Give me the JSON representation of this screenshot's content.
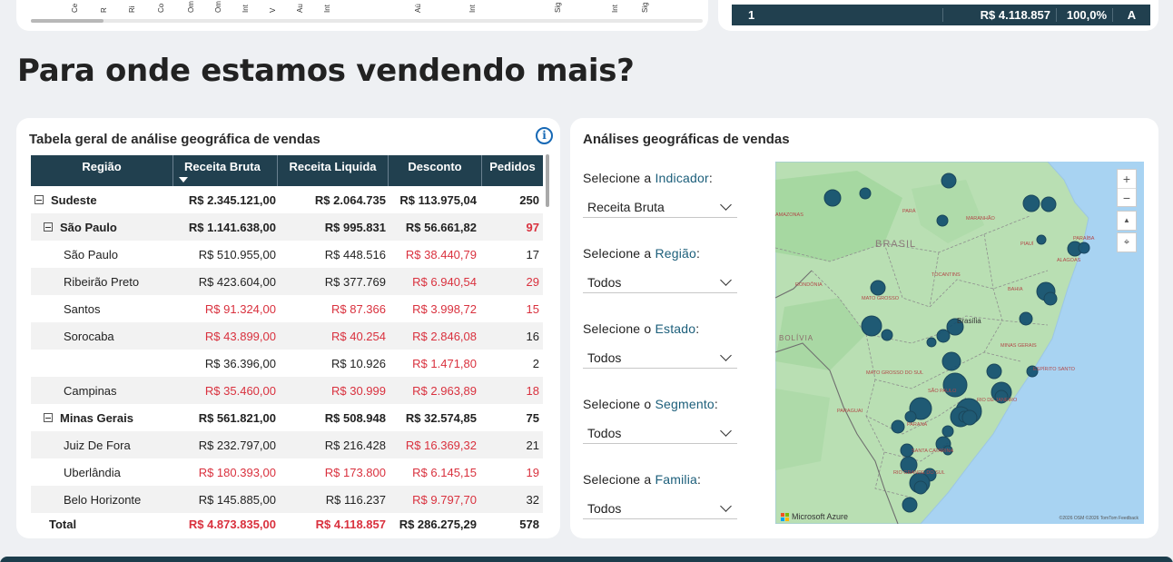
{
  "top_strip": {
    "rotated_labels": [
      "Ce",
      "R",
      "Ri",
      "Co",
      "Om",
      "Om",
      "Int",
      "V",
      "Au",
      "Int",
      "Aú",
      "Int",
      "Sig",
      "Int",
      "Sig"
    ],
    "totals_row": {
      "rank": "1",
      "value": "R$ 4.118.857",
      "percent": "100,0%",
      "class": "A"
    }
  },
  "page_title": "Para onde estamos vendendo mais?",
  "table_card": {
    "title": "Tabela geral de análise geográfica de vendas",
    "info_icon": "i",
    "columns": [
      "Região",
      "Receita Bruta",
      "Receita Liquida",
      "Desconto",
      "Pedidos"
    ],
    "rows": [
      {
        "level": 0,
        "bold": true,
        "expander": true,
        "name": "Sudeste",
        "bruta": "R$ 2.345.121,00",
        "liquida": "R$ 2.064.735",
        "desconto": "R$ 113.975,04",
        "pedidos": "250",
        "red": []
      },
      {
        "level": 1,
        "bold": true,
        "expander": true,
        "name": "São Paulo",
        "bruta": "R$ 1.141.638,00",
        "liquida": "R$ 995.831",
        "desconto": "R$ 56.661,82",
        "pedidos": "97",
        "red": [
          "pedidos"
        ]
      },
      {
        "level": 2,
        "bold": false,
        "expander": false,
        "name": "São Paulo",
        "bruta": "R$ 510.955,00",
        "liquida": "R$ 448.516",
        "desconto": "R$ 38.440,79",
        "pedidos": "17",
        "red": [
          "desconto"
        ]
      },
      {
        "level": 2,
        "bold": false,
        "expander": false,
        "name": "Ribeirão Preto",
        "bruta": "R$ 423.604,00",
        "liquida": "R$ 377.769",
        "desconto": "R$ 6.940,54",
        "pedidos": "29",
        "red": [
          "desconto",
          "pedidos"
        ]
      },
      {
        "level": 2,
        "bold": false,
        "expander": false,
        "name": "Santos",
        "bruta": "R$ 91.324,00",
        "liquida": "R$ 87.366",
        "desconto": "R$ 3.998,72",
        "pedidos": "15",
        "red": [
          "bruta",
          "liquida",
          "desconto",
          "pedidos"
        ]
      },
      {
        "level": 2,
        "bold": false,
        "expander": false,
        "name": "Sorocaba",
        "bruta": "R$ 43.899,00",
        "liquida": "R$ 40.254",
        "desconto": "R$ 2.846,08",
        "pedidos": "16",
        "red": [
          "bruta",
          "liquida",
          "desconto"
        ]
      },
      {
        "level": 2,
        "bold": false,
        "expander": false,
        "name": "",
        "bruta": "R$ 36.396,00",
        "liquida": "R$ 10.926",
        "desconto": "R$ 1.471,80",
        "pedidos": "2",
        "red": [
          "desconto"
        ]
      },
      {
        "level": 2,
        "bold": false,
        "expander": false,
        "name": "Campinas",
        "bruta": "R$ 35.460,00",
        "liquida": "R$ 30.999",
        "desconto": "R$ 2.963,89",
        "pedidos": "18",
        "red": [
          "bruta",
          "liquida",
          "desconto",
          "pedidos"
        ]
      },
      {
        "level": 1,
        "bold": true,
        "expander": true,
        "name": "Minas Gerais",
        "bruta": "R$ 561.821,00",
        "liquida": "R$ 508.948",
        "desconto": "R$ 32.574,85",
        "pedidos": "75",
        "red": []
      },
      {
        "level": 2,
        "bold": false,
        "expander": false,
        "name": "Juiz De Fora",
        "bruta": "R$ 232.797,00",
        "liquida": "R$ 216.428",
        "desconto": "R$ 16.369,32",
        "pedidos": "21",
        "red": [
          "desconto"
        ]
      },
      {
        "level": 2,
        "bold": false,
        "expander": false,
        "name": "Uberlândia",
        "bruta": "R$ 180.393,00",
        "liquida": "R$ 173.800",
        "desconto": "R$ 6.145,15",
        "pedidos": "19",
        "red": [
          "bruta",
          "liquida",
          "desconto",
          "pedidos"
        ]
      },
      {
        "level": 2,
        "bold": false,
        "expander": false,
        "name": "Belo Horizonte",
        "bruta": "R$ 145.885,00",
        "liquida": "R$ 116.237",
        "desconto": "R$ 9.797,70",
        "pedidos": "32",
        "red": [
          "desconto"
        ]
      }
    ],
    "total": {
      "name": "Total",
      "bruta": "R$ 4.873.835,00",
      "liquida": "R$ 4.118.857",
      "desconto": "R$ 286.275,29",
      "pedidos": "578"
    }
  },
  "map_card": {
    "title": "Análises geográficas de vendas",
    "filters": [
      {
        "prefix": "Selecione a ",
        "highlight": "Indicador",
        "suffix": ":",
        "value": "Receita Bruta"
      },
      {
        "prefix": "Selecione a ",
        "highlight": "Região",
        "suffix": ":",
        "value": "Todos"
      },
      {
        "prefix": "Selecione o ",
        "highlight": "Estado",
        "suffix": ":",
        "value": "Todos"
      },
      {
        "prefix": "Selecione o ",
        "highlight": "Segmento",
        "suffix": ":",
        "value": "Todos"
      },
      {
        "prefix": "Selecione a ",
        "highlight": "Familia",
        "suffix": ":",
        "value": "Todos"
      }
    ],
    "map": {
      "controls": [
        "+",
        "−",
        "▲",
        "⌖"
      ],
      "logo_text": "Microsoft Azure",
      "credit_text": "©2026 OSM ©2026 TomTom Feedback",
      "country_label": "BRASIL",
      "country_label_2": "BOLÍVIA",
      "capital_label": "Brasília",
      "state_labels": [
        "AMAZONAS",
        "PARÁ",
        "MARANHÃO",
        "PIAUÍ",
        "PARAÍBA",
        "ALAGOAS",
        "TOCANTINS",
        "RONDÔNIA",
        "BAHIA",
        "MATO GROSSO",
        "MINAS GERAIS",
        "MATO GROSSO DO SUL",
        "ESPÍRITO SANTO",
        "PARAGUAI",
        "SÃO PAULO",
        "PARANÁ",
        "SANTA CATARINA",
        "RIO GRANDE DO SUL",
        "RIO DE JANEIRO"
      ],
      "bubble_color": "#0f4c6e"
    }
  }
}
